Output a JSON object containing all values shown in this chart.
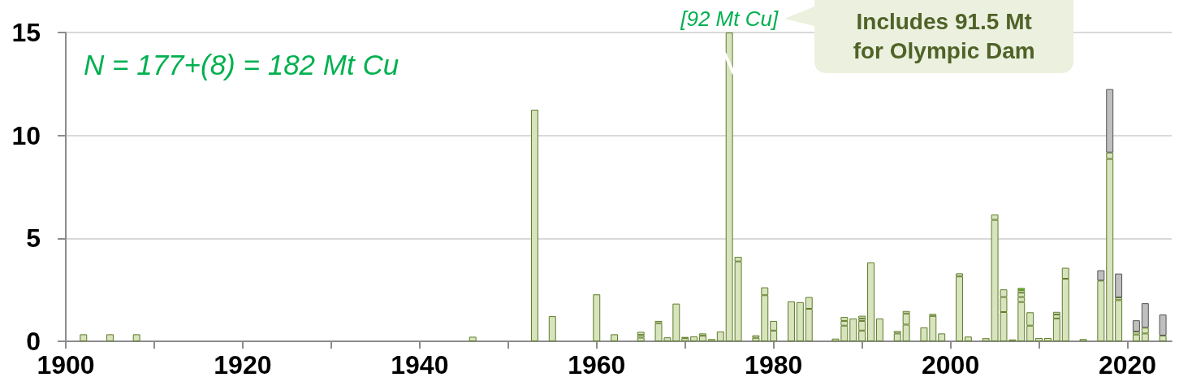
{
  "chart_data": {
    "type": "bar",
    "stacked": true,
    "x": [
      1902,
      1905,
      1908,
      1946,
      1953,
      1955,
      1960,
      1962,
      1965,
      1967,
      1968,
      1969,
      1970,
      1971,
      1972,
      1973,
      1974,
      1975,
      1976,
      1978,
      1979,
      1980,
      1982,
      1983,
      1984,
      1987,
      1988,
      1989,
      1990,
      1991,
      1992,
      1994,
      1995,
      1997,
      1998,
      1999,
      2001,
      2002,
      2004,
      2005,
      2006,
      2007,
      2008,
      2009,
      2010,
      2011,
      2012,
      2013,
      2015,
      2017,
      2018,
      2019,
      2021,
      2022,
      2024
    ],
    "series": [
      {
        "color": "#d7e4bd",
        "values": [
          0.34,
          0.34,
          0.34,
          0.22,
          11.25,
          1.22,
          2.28,
          0.34,
          0.18,
          0.88,
          0.19,
          1.83,
          0.15,
          0.24,
          0.27,
          0.11,
          0.48,
          15,
          3.88,
          0.17,
          2.24,
          0.52,
          1.94,
          1.9,
          1.58,
          0.13,
          0.76,
          1.11,
          0.52,
          3.83,
          1.11,
          0.38,
          0.81,
          0.68,
          1.23,
          0.38,
          3.15,
          0.23,
          0.15,
          5.9,
          1.42,
          0.09,
          1.91,
          0.76,
          0.16,
          0.16,
          1.11,
          3.04,
          0.11,
          2.95,
          8.86,
          2.0,
          0.33,
          0.38,
          0.28
        ]
      },
      {
        "color": "#d7e4bd",
        "values": [
          null,
          null,
          null,
          null,
          null,
          null,
          null,
          null,
          0.13,
          0.11,
          null,
          null,
          0.06,
          null,
          0.11,
          null,
          null,
          null,
          0.22,
          0.12,
          0.38,
          0.47,
          null,
          null,
          0.57,
          null,
          0.23,
          null,
          0.47,
          null,
          null,
          0.12,
          0.54,
          null,
          0.1,
          null,
          0.15,
          null,
          null,
          0.26,
          0.73,
          null,
          0.24,
          0.65,
          null,
          null,
          0.19,
          0.53,
          null,
          null,
          0.31,
          0.13,
          0.14,
          0.28,
          null
        ]
      },
      {
        "color": "#d7e4bd",
        "values": [
          null,
          null,
          null,
          null,
          null,
          null,
          null,
          null,
          0.15,
          null,
          null,
          null,
          null,
          null,
          null,
          null,
          null,
          null,
          null,
          null,
          null,
          null,
          null,
          null,
          null,
          null,
          0.19,
          null,
          0.12,
          null,
          null,
          null,
          0.12,
          null,
          null,
          null,
          null,
          null,
          null,
          null,
          0.37,
          null,
          0.21,
          null,
          null,
          null,
          0.13,
          null,
          null,
          null,
          null,
          null,
          null,
          null,
          null
        ]
      },
      {
        "color": "#d7e4bd",
        "values": [
          null,
          null,
          null,
          null,
          null,
          null,
          null,
          null,
          null,
          null,
          null,
          null,
          null,
          null,
          null,
          null,
          null,
          null,
          null,
          null,
          null,
          null,
          null,
          null,
          null,
          null,
          null,
          null,
          0.13,
          null,
          null,
          null,
          null,
          null,
          null,
          null,
          null,
          null,
          null,
          null,
          null,
          null,
          0.12,
          null,
          null,
          null,
          null,
          null,
          null,
          null,
          null,
          null,
          null,
          null,
          null
        ]
      },
      {
        "color": "#92d050",
        "values": [
          null,
          null,
          null,
          null,
          null,
          null,
          null,
          null,
          null,
          null,
          null,
          null,
          null,
          null,
          null,
          null,
          null,
          null,
          null,
          null,
          null,
          null,
          null,
          null,
          null,
          null,
          null,
          null,
          null,
          null,
          null,
          null,
          null,
          null,
          null,
          null,
          null,
          null,
          null,
          null,
          null,
          null,
          0.11,
          null,
          null,
          null,
          null,
          null,
          null,
          null,
          null,
          null,
          null,
          null,
          null
        ]
      },
      {
        "color": "#bfbfbf",
        "values": [
          null,
          null,
          null,
          null,
          null,
          null,
          null,
          null,
          null,
          null,
          null,
          null,
          null,
          null,
          null,
          null,
          null,
          null,
          null,
          null,
          null,
          null,
          null,
          null,
          null,
          null,
          null,
          null,
          null,
          null,
          null,
          null,
          null,
          null,
          null,
          null,
          null,
          null,
          null,
          null,
          null,
          null,
          null,
          null,
          null,
          null,
          null,
          null,
          null,
          0.5,
          3.08,
          1.16,
          0.55,
          1.19,
          1.02
        ]
      }
    ],
    "xlim": [
      1900,
      2025
    ],
    "xticks": [
      1900,
      {
        "value": 1910,
        "label": null
      },
      1920,
      {
        "value": 1930,
        "label": null
      },
      1940,
      {
        "value": 1950,
        "label": null
      },
      1960,
      {
        "value": 1970,
        "label": null
      },
      1980,
      {
        "value": 1990,
        "label": null
      },
      2000,
      {
        "value": 2010,
        "label": null
      },
      2020
    ],
    "ylim": [
      0,
      15
    ],
    "yticks": [
      0,
      5,
      10,
      15
    ],
    "grid": "y",
    "annotations": [
      "N = 177+(8) = 182 Mt Cu",
      "Includes 91.5 Mt for Olympic Dam",
      {
        "text": "[92 Mt Cu]",
        "x": 1975,
        "y": 15
      }
    ]
  }
}
